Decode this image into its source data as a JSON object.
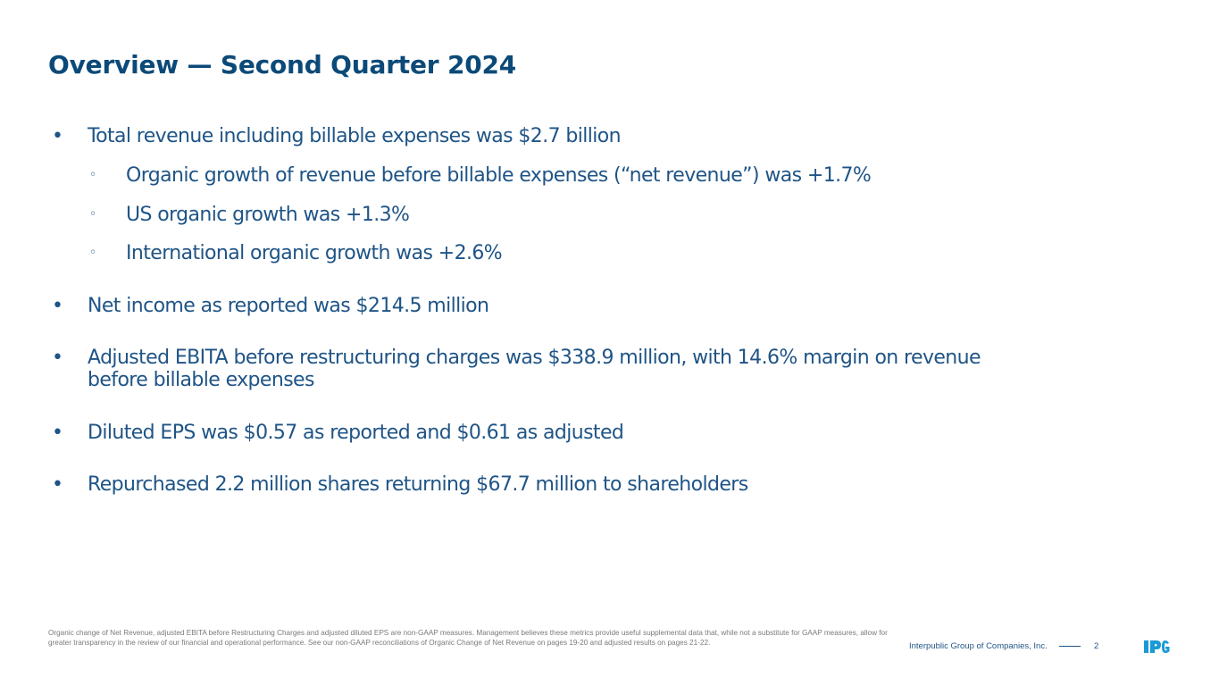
{
  "title": "Overview — Second Quarter 2024",
  "bullets": {
    "b1": "Total revenue including billable expenses was $2.7 billion",
    "s1": "Organic growth of revenue before billable expenses (“net revenue”) was +1.7%",
    "s2": "US organic growth was +1.3%",
    "s3": "International organic growth was +2.6%",
    "b2": "Net income as reported was $214.5 million",
    "b3": "Adjusted EBITA before restructuring charges was $338.9 million, with 14.6% margin on revenue before billable expenses",
    "b4": "Diluted EPS was $0.57 as reported and $0.61 as adjusted",
    "b5": "Repurchased 2.2 million shares returning $67.7 million to shareholders"
  },
  "markers": {
    "bullet": "•",
    "sub": "◦"
  },
  "footer": {
    "footnote": "Organic change of Net Revenue, adjusted EBITA before Restructuring Charges and adjusted diluted EPS are non-GAAP measures. Management believes these metrics provide useful supplemental data that, while not a substitute for GAAP measures, allow for greater transparency in the review of our financial and operational performance. See our non-GAAP reconciliations of Organic Change of Net Revenue on pages 19-20 and adjusted results on pages 21-22.",
    "company": "Interpublic Group of Companies, Inc.",
    "page": "2",
    "logo_text": "IPG"
  },
  "colors": {
    "title": "#0b4a78",
    "body": "#1f5486",
    "logo": "#1a9ad6"
  }
}
